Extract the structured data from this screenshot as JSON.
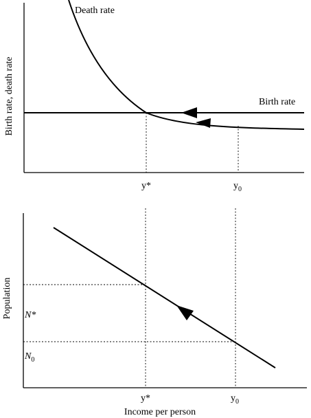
{
  "chart_data": [
    {
      "type": "line",
      "ylabel": "Birth rate, death rate",
      "xlabel": "",
      "series": [
        {
          "name": "Death rate"
        },
        {
          "name": "Birth rate"
        }
      ],
      "x_ticks": [
        {
          "label": "y*",
          "sub": ""
        },
        {
          "label": "y",
          "sub": "0"
        }
      ]
    },
    {
      "type": "line",
      "ylabel": "Population",
      "xlabel": "Income per person",
      "x_ticks": [
        {
          "label": "y*",
          "sub": ""
        },
        {
          "label": "y",
          "sub": "0"
        }
      ],
      "y_ticks": [
        {
          "label": "N*",
          "sub": ""
        },
        {
          "label": "N",
          "sub": "0"
        }
      ]
    }
  ]
}
